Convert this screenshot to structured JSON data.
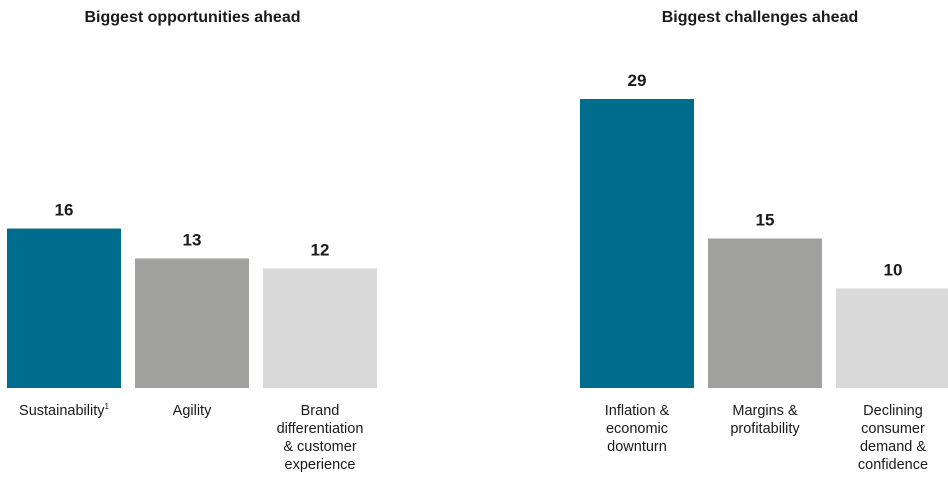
{
  "chart_data": [
    {
      "type": "bar",
      "title": "Biggest opportunities ahead",
      "categories": [
        "Sustainability",
        "Agility",
        "Brand differentiation & customer experience"
      ],
      "category_lines": [
        [
          "Sustainability"
        ],
        [
          "Agility"
        ],
        [
          "Brand",
          "differentiation",
          "& customer",
          "experience"
        ]
      ],
      "category_superscripts": [
        "1",
        "",
        ""
      ],
      "values": [
        16,
        13,
        12
      ],
      "value_labels": [
        "16",
        "13",
        "12"
      ],
      "colors": [
        "#006D8F",
        "#A0A09E",
        "#DADADA"
      ],
      "ylim": [
        0,
        29
      ],
      "grid": false
    },
    {
      "type": "bar",
      "title": "Biggest challenges ahead",
      "categories": [
        "Inflation & economic downturn",
        "Margins & profitability",
        "Declining consumer demand & confidence"
      ],
      "category_lines": [
        [
          "Inflation &",
          "economic",
          "downturn"
        ],
        [
          "Margins &",
          "profitability"
        ],
        [
          "Declining",
          "consumer",
          "demand &",
          "confidence"
        ]
      ],
      "category_superscripts": [
        "",
        "",
        ""
      ],
      "values": [
        29,
        15,
        10
      ],
      "value_labels": [
        "29",
        "15",
        "10"
      ],
      "colors": [
        "#006D8F",
        "#A0A09E",
        "#DADADA"
      ],
      "ylim": [
        0,
        29
      ],
      "grid": false
    }
  ]
}
